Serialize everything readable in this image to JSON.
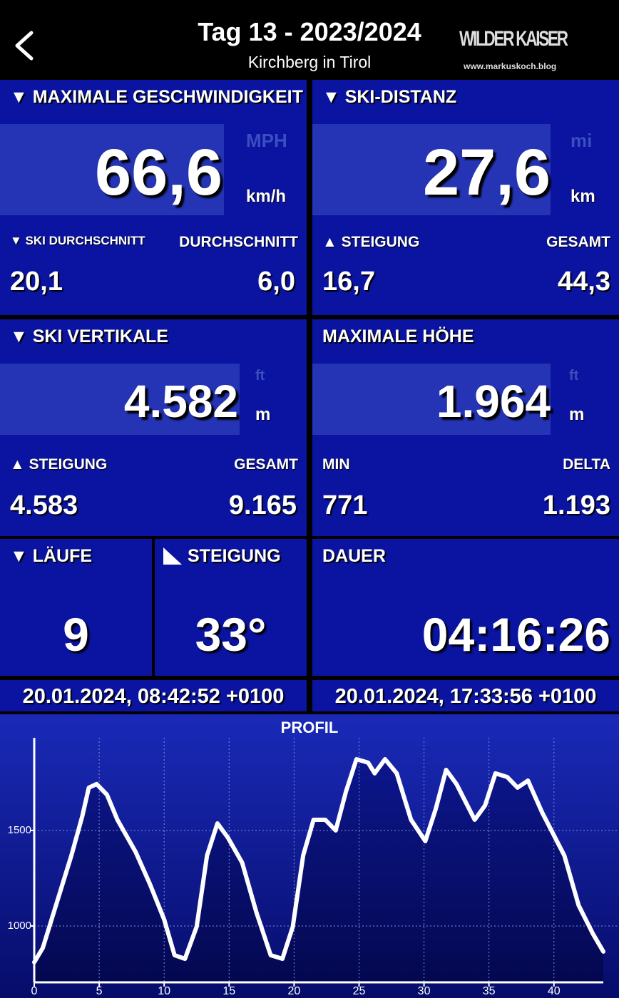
{
  "header": {
    "title": "Tag 13 - 2023/2024",
    "subtitle": "Kirchberg in Tirol",
    "logo": "WILDER KAISER",
    "logo_url": "www.markuskoch.blog"
  },
  "tiles": [
    {
      "title": "▼ MAXIMALE GESCHWINDIGKEIT",
      "value": "66,6",
      "unit": "km/h",
      "alt_unit": "MPH",
      "stats": [
        {
          "label": "▼ SKI DURCHSCHNITT",
          "value": "20,1"
        },
        {
          "label": "DURCHSCHNITT",
          "value": "6,0"
        }
      ]
    },
    {
      "title": "▼ SKI-DISTANZ",
      "value": "27,6",
      "unit": "km",
      "alt_unit": "mi",
      "stats": [
        {
          "label": "▲ STEIGUNG",
          "value": "16,7"
        },
        {
          "label": "GESAMT",
          "value": "44,3"
        }
      ]
    },
    {
      "title": "▼ SKI VERTIKALE",
      "value": "4.582",
      "unit": "m",
      "alt_unit": "ft",
      "stats": [
        {
          "label": "▲ STEIGUNG",
          "value": "4.583"
        },
        {
          "label": "GESAMT",
          "value": "9.165"
        }
      ]
    },
    {
      "title": "MAXIMALE HÖHE",
      "value": "1.964",
      "unit": "m",
      "alt_unit": "ft",
      "stats": [
        {
          "label": "MIN",
          "value": "771"
        },
        {
          "label": "DELTA",
          "value": "1.193"
        }
      ]
    }
  ],
  "runs": {
    "title": "▼ LÄUFE",
    "value": "9"
  },
  "slope": {
    "title": "STEIGUNG",
    "value": "33°"
  },
  "duration": {
    "title": "DAUER",
    "value": "04:16:26"
  },
  "dates": [
    "20.01.2024, 08:42:52 +0100",
    "20.01.2024, 17:33:56 +0100"
  ],
  "chart_data": {
    "type": "line",
    "title": "PROFIL",
    "color": "#ffffff",
    "grid": true,
    "x": [
      0,
      0.66,
      1.76,
      2.86,
      3.7,
      4.2,
      4.8,
      5.6,
      6.4,
      7.8,
      8.9,
      10,
      10.8,
      11.6,
      12.5,
      13.3,
      14.1,
      14.9,
      16,
      17.1,
      18.2,
      19.1,
      19.9,
      20.7,
      21.5,
      22.4,
      23.2,
      24,
      24.8,
      25.7,
      26.2,
      27,
      27.9,
      29,
      30.1,
      30.9,
      31.7,
      32.5,
      33.9,
      34.7,
      35.5,
      36.4,
      37.2,
      38,
      39.1,
      40.8,
      41.9,
      43,
      43.8
    ],
    "values": [
      810,
      885,
      1127,
      1369,
      1575,
      1724,
      1743,
      1687,
      1556,
      1388,
      1220,
      1034,
      847,
      828,
      996,
      1369,
      1537,
      1463,
      1332,
      1071,
      847,
      828,
      996,
      1369,
      1556,
      1556,
      1500,
      1705,
      1873,
      1855,
      1799,
      1873,
      1799,
      1556,
      1444,
      1612,
      1817,
      1743,
      1556,
      1631,
      1799,
      1780,
      1724,
      1761,
      1593,
      1369,
      1108,
      959,
      866
    ],
    "xlim": [
      0,
      43.8
    ],
    "ylim": [
      705,
      1985
    ],
    "xticks": [
      0,
      5,
      10,
      15,
      20,
      25,
      30,
      35,
      40
    ],
    "yticks": [
      1000,
      1500
    ]
  }
}
